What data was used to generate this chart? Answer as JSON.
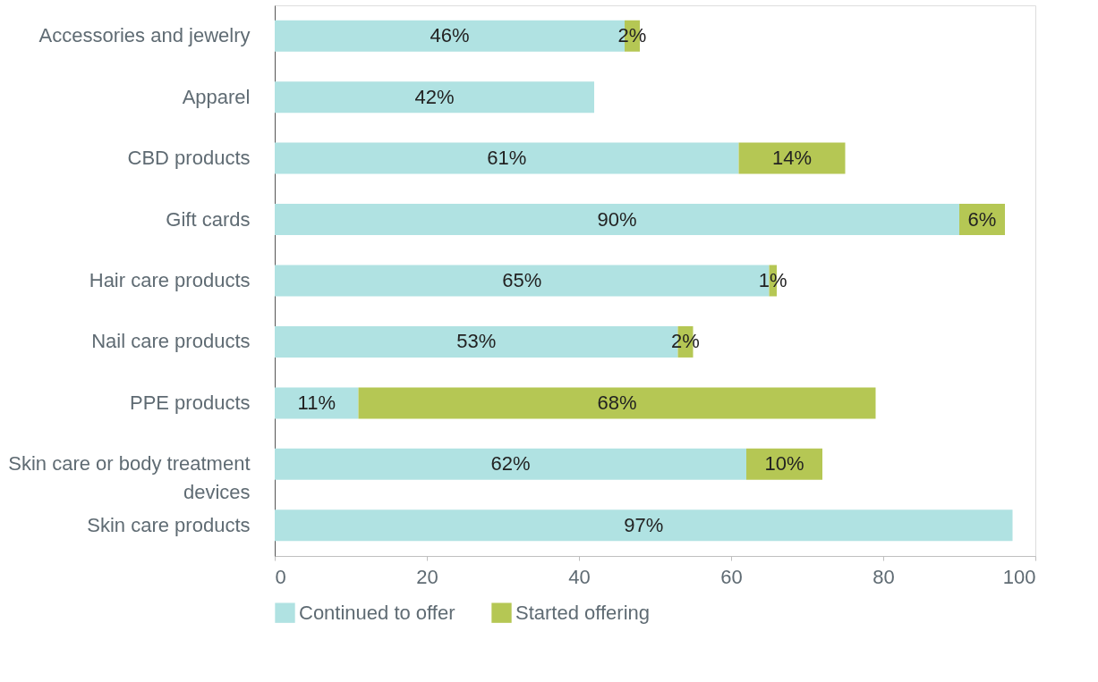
{
  "chart_data": {
    "type": "bar",
    "orientation": "horizontal",
    "stacked": true,
    "categories": [
      "Accessories and jewelry",
      "Apparel",
      "CBD products",
      "Gift cards",
      "Hair care products",
      "Nail care products",
      "PPE products",
      "Skin care or body treatment devices",
      "Skin care products"
    ],
    "series": [
      {
        "name": "Continued to offer",
        "color": "#b0e2e2",
        "values": [
          46,
          42,
          61,
          90,
          65,
          53,
          11,
          62,
          97
        ],
        "value_labels": [
          "46%",
          "42%",
          "61%",
          "90%",
          "65%",
          "53%",
          "11%",
          "62%",
          "97%"
        ]
      },
      {
        "name": "Started offering",
        "color": "#b5c754",
        "values": [
          2,
          null,
          14,
          6,
          1,
          2,
          68,
          10,
          null
        ],
        "value_labels": [
          "2%",
          null,
          "14%",
          "6%",
          "1%",
          "2%",
          "68%",
          "10%",
          null
        ]
      }
    ],
    "xlim": [
      0,
      100
    ],
    "xticks": [
      0,
      20,
      40,
      60,
      80,
      100
    ],
    "grid": false,
    "legend": "bottom"
  }
}
